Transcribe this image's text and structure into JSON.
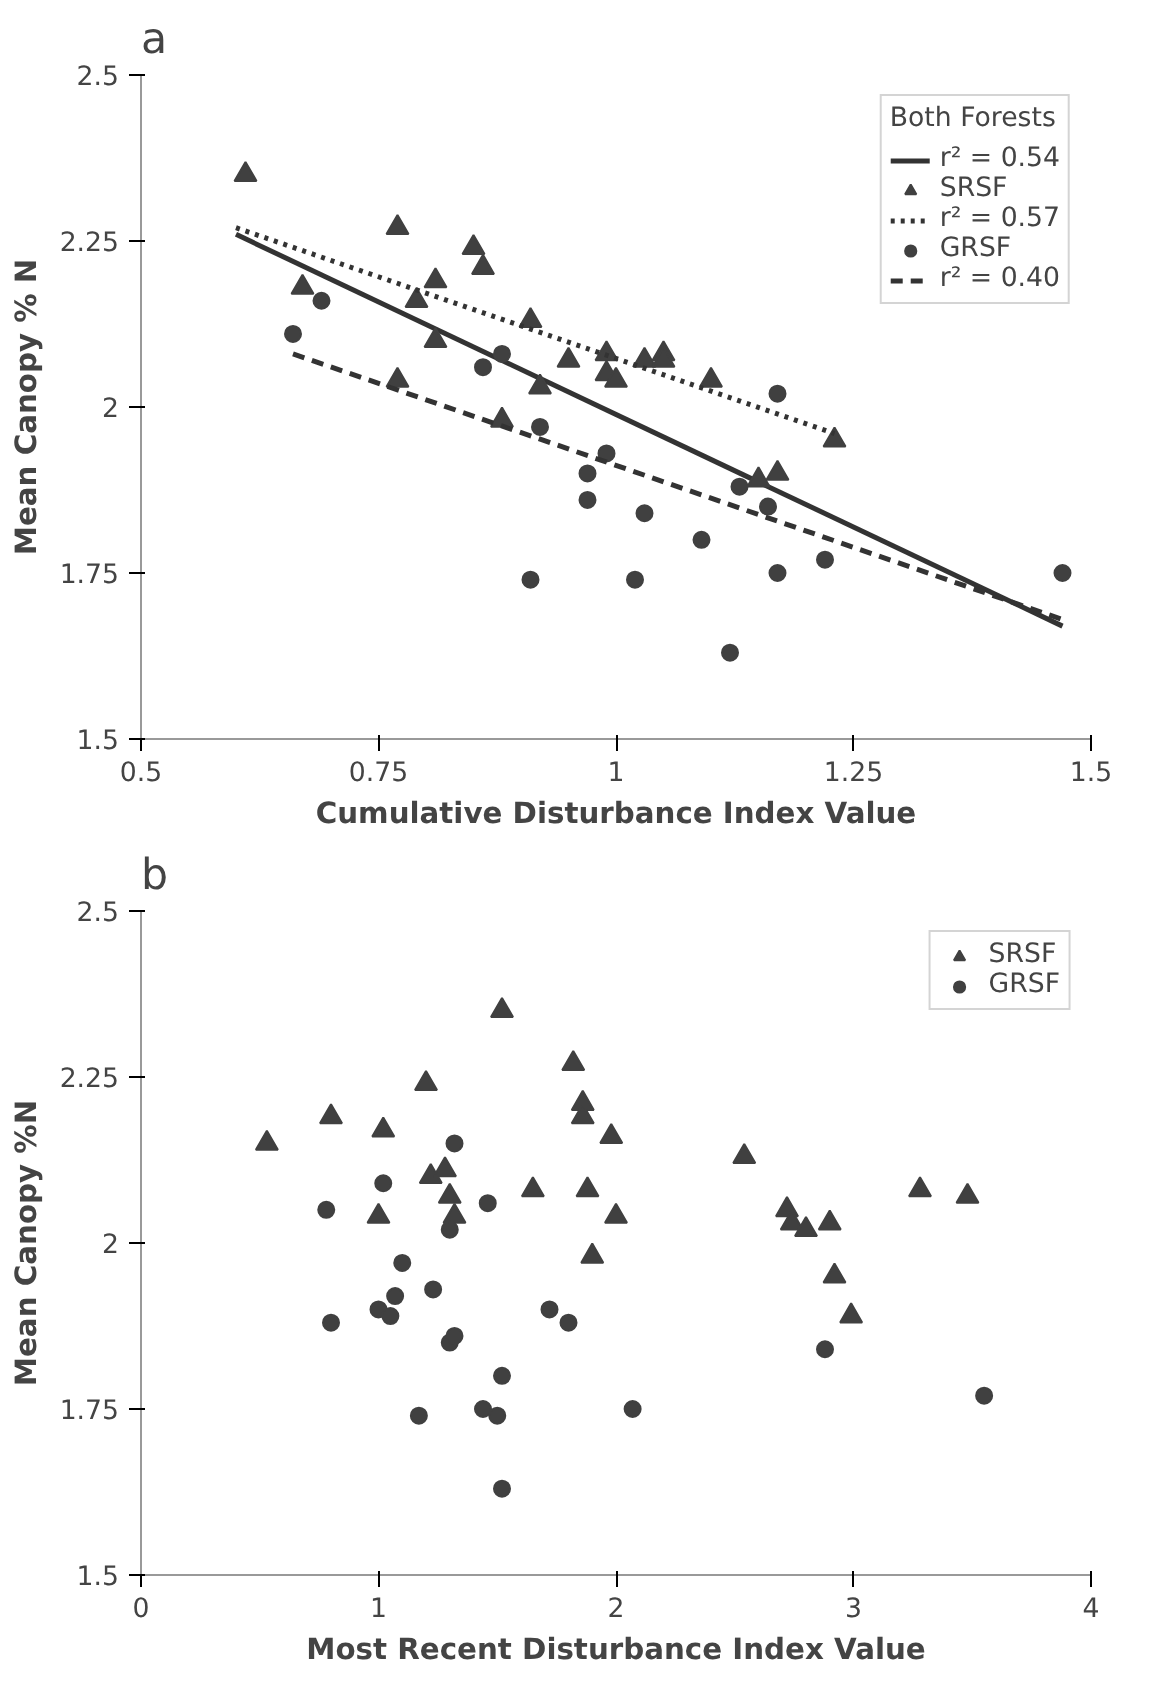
{
  "chart_data": [
    {
      "type": "scatter",
      "title": "a",
      "xlabel": "Cumulative Disturbance Index Value",
      "ylabel": "Mean Canopy % N",
      "xlim": [
        0.5,
        1.5
      ],
      "ylim": [
        1.5,
        2.5
      ],
      "xticks": [
        0.5,
        0.75,
        1,
        1.25,
        1.5
      ],
      "yticks": [
        1.5,
        1.75,
        2,
        2.25,
        2.5
      ],
      "grid": false,
      "legend": "top right",
      "legend_title": "Both Forests",
      "series": [
        {
          "name": "r² = 0.54",
          "type": "line",
          "line_style": "solid",
          "color": "#333333",
          "x": [
            0.6,
            1.47
          ],
          "values": [
            2.26,
            1.67
          ]
        },
        {
          "name": "SRSF",
          "type": "scatter",
          "marker": "triangle",
          "color": "#404040",
          "x": [
            0.61,
            0.67,
            0.77,
            0.77,
            0.79,
            0.81,
            0.81,
            0.85,
            0.86,
            0.88,
            0.91,
            0.92,
            0.95,
            0.99,
            0.99,
            1.0,
            1.03,
            1.05,
            1.05,
            1.1,
            1.15,
            1.17,
            1.23
          ],
          "values": [
            2.35,
            2.18,
            2.27,
            2.04,
            2.16,
            2.19,
            2.1,
            2.24,
            2.21,
            1.98,
            2.13,
            2.03,
            2.07,
            2.08,
            2.05,
            2.04,
            2.07,
            2.08,
            2.07,
            2.04,
            1.89,
            1.9,
            1.95
          ]
        },
        {
          "name": "r² = 0.57",
          "type": "line",
          "line_style": "dotted",
          "color": "#333333",
          "x": [
            0.6,
            1.23
          ],
          "values": [
            2.27,
            1.96
          ]
        },
        {
          "name": "GRSF",
          "type": "scatter",
          "marker": "circle",
          "color": "#404040",
          "x": [
            0.66,
            0.69,
            0.86,
            0.88,
            0.91,
            0.92,
            0.97,
            0.97,
            0.99,
            1.02,
            1.03,
            1.09,
            1.12,
            1.13,
            1.16,
            1.17,
            1.17,
            1.22,
            1.47
          ],
          "values": [
            2.11,
            2.16,
            2.06,
            2.08,
            1.74,
            1.97,
            1.9,
            1.86,
            1.93,
            1.74,
            1.84,
            1.8,
            1.63,
            1.88,
            1.85,
            1.75,
            2.02,
            1.77,
            1.75
          ]
        },
        {
          "name": "r² = 0.40",
          "type": "line",
          "line_style": "dashed",
          "color": "#333333",
          "x": [
            0.66,
            1.47
          ],
          "values": [
            2.08,
            1.68
          ]
        }
      ]
    },
    {
      "type": "scatter",
      "title": "b",
      "xlabel": "Most Recent Disturbance Index Value",
      "ylabel": "Mean Canopy %N",
      "xlim": [
        0,
        4
      ],
      "ylim": [
        1.5,
        2.5
      ],
      "xticks": [
        0,
        1,
        2,
        3,
        4
      ],
      "yticks": [
        1.5,
        1.75,
        2,
        2.25,
        2.5
      ],
      "grid": false,
      "legend": "top right",
      "series": [
        {
          "name": "SRSF",
          "type": "scatter",
          "marker": "triangle",
          "color": "#404040",
          "x": [
            0.53,
            0.8,
            1.02,
            1.0,
            1.2,
            1.22,
            1.28,
            1.3,
            1.32,
            1.52,
            1.65,
            1.82,
            1.86,
            1.86,
            1.88,
            1.9,
            1.98,
            2.0,
            2.54,
            2.72,
            2.74,
            2.8,
            2.9,
            2.92,
            2.99,
            3.28,
            3.48
          ],
          "values": [
            2.15,
            2.19,
            2.17,
            2.04,
            2.24,
            2.1,
            2.11,
            2.07,
            2.04,
            2.35,
            2.08,
            2.27,
            2.21,
            2.19,
            2.08,
            1.98,
            2.16,
            2.04,
            2.13,
            2.05,
            2.03,
            2.02,
            2.03,
            1.95,
            1.89,
            2.08,
            2.07
          ]
        },
        {
          "name": "GRSF",
          "type": "scatter",
          "marker": "circle",
          "color": "#404040",
          "x": [
            0.8,
            0.78,
            1.0,
            1.02,
            1.05,
            1.07,
            1.1,
            1.17,
            1.23,
            1.3,
            1.3,
            1.32,
            1.32,
            1.44,
            1.5,
            1.52,
            1.52,
            1.46,
            1.72,
            1.8,
            2.07,
            2.88,
            3.55
          ],
          "values": [
            1.88,
            2.05,
            1.9,
            2.09,
            1.89,
            1.92,
            1.97,
            1.74,
            1.93,
            1.85,
            2.02,
            2.15,
            1.86,
            1.75,
            1.74,
            1.8,
            1.63,
            2.06,
            1.9,
            1.88,
            1.75,
            1.84,
            1.77
          ]
        }
      ]
    }
  ]
}
